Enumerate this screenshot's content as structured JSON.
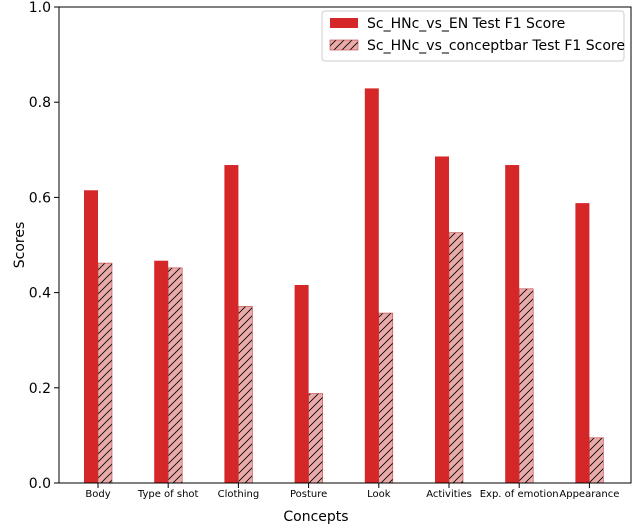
{
  "chart_data": {
    "type": "bar",
    "title": "",
    "xlabel": "Concepts",
    "ylabel": "Scores",
    "ylim": [
      0,
      1.0
    ],
    "yticks": [
      0.0,
      0.2,
      0.4,
      0.6,
      0.8,
      1.0
    ],
    "ytick_labels": [
      "0.0",
      "0.2",
      "0.4",
      "0.6",
      "0.8",
      "1.0"
    ],
    "categories": [
      "Body",
      "Type of shot",
      "Clothing",
      "Posture",
      "Look",
      "Activities",
      "Exp. of emotion",
      "Appearance"
    ],
    "grid": false,
    "legend_position": "top-right",
    "series": [
      {
        "name": "Sc_HNc_vs_EN Test F1 Score",
        "color": "#d62728",
        "hatch": false,
        "values": [
          0.615,
          0.467,
          0.668,
          0.416,
          0.829,
          0.686,
          0.668,
          0.588
        ]
      },
      {
        "name": "Sc_HNc_vs_conceptbar Test F1 Score",
        "color": "#e9aaaa",
        "hatch": true,
        "values": [
          0.462,
          0.452,
          0.371,
          0.188,
          0.357,
          0.526,
          0.408,
          0.095
        ]
      }
    ]
  }
}
